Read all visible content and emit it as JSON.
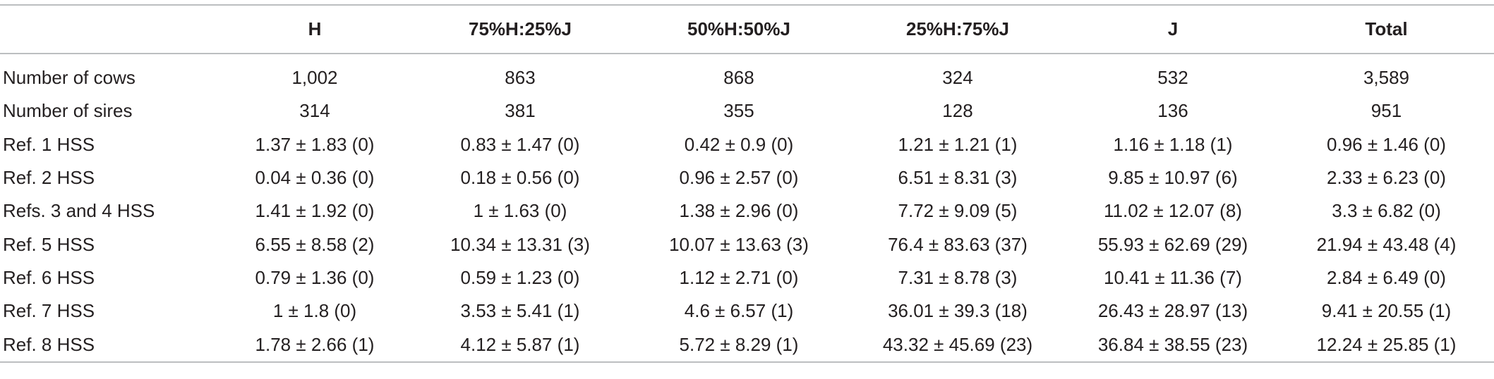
{
  "table": {
    "headers": [
      "",
      "H",
      "75%H:25%J",
      "50%H:50%J",
      "25%H:75%J",
      "J",
      "Total"
    ],
    "rows": [
      [
        "Number of cows",
        "1,002",
        "863",
        "868",
        "324",
        "532",
        "3,589"
      ],
      [
        "Number of sires",
        "314",
        "381",
        "355",
        "128",
        "136",
        "951"
      ],
      [
        "Ref. 1 HSS",
        "1.37 ± 1.83 (0)",
        "0.83 ± 1.47 (0)",
        "0.42 ± 0.9 (0)",
        "1.21 ± 1.21 (1)",
        "1.16 ± 1.18 (1)",
        "0.96 ± 1.46 (0)"
      ],
      [
        "Ref. 2 HSS",
        "0.04 ± 0.36 (0)",
        "0.18 ± 0.56 (0)",
        "0.96 ± 2.57 (0)",
        "6.51 ± 8.31 (3)",
        "9.85 ± 10.97 (6)",
        "2.33 ± 6.23 (0)"
      ],
      [
        "Refs. 3 and 4 HSS",
        "1.41 ± 1.92 (0)",
        "1 ± 1.63 (0)",
        "1.38 ± 2.96 (0)",
        "7.72 ± 9.09 (5)",
        "11.02 ± 12.07 (8)",
        "3.3 ± 6.82 (0)"
      ],
      [
        "Ref. 5 HSS",
        "6.55 ± 8.58 (2)",
        "10.34 ± 13.31 (3)",
        "10.07 ± 13.63 (3)",
        "76.4 ± 83.63 (37)",
        "55.93 ± 62.69 (29)",
        "21.94 ± 43.48 (4)"
      ],
      [
        "Ref. 6 HSS",
        "0.79 ± 1.36 (0)",
        "0.59 ± 1.23 (0)",
        "1.12 ± 2.71 (0)",
        "7.31 ± 8.78 (3)",
        "10.41 ± 11.36 (7)",
        "2.84 ± 6.49 (0)"
      ],
      [
        "Ref. 7 HSS",
        "1 ± 1.8 (0)",
        "3.53 ± 5.41 (1)",
        "4.6 ± 6.57 (1)",
        "36.01 ± 39.3 (18)",
        "26.43 ± 28.97 (13)",
        "9.41 ± 20.55 (1)"
      ],
      [
        "Ref. 8 HSS",
        "1.78 ± 2.66 (1)",
        "4.12 ± 5.87 (1)",
        "5.72 ± 8.29 (1)",
        "43.32 ± 45.69 (23)",
        "36.84 ± 38.55 (23)",
        "12.24 ± 25.85 (1)"
      ]
    ]
  }
}
